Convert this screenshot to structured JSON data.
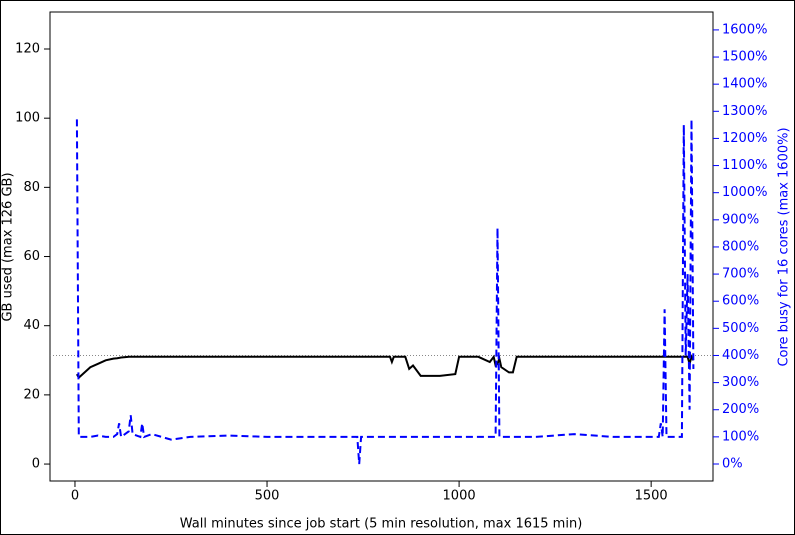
{
  "chart_data": {
    "type": "line",
    "xlabel": "Wall minutes since job start (5 min resolution, max 1615 min)",
    "ylabel": "GB used (max 126 GB)",
    "y2label": "Core busy for 16 cores (max 1600%)",
    "x": [
      5,
      10,
      20,
      40,
      60,
      80,
      100,
      110,
      115,
      120,
      140,
      145,
      150,
      170,
      175,
      180,
      200,
      250,
      300,
      400,
      500,
      600,
      700,
      735,
      740,
      745,
      800,
      820,
      825,
      830,
      860,
      870,
      880,
      900,
      950,
      990,
      1000,
      1050,
      1080,
      1090,
      1095,
      1100,
      1105,
      1110,
      1130,
      1140,
      1150,
      1200,
      1300,
      1400,
      1500,
      1520,
      1525,
      1530,
      1535,
      1540,
      1560,
      1580,
      1585,
      1590,
      1595,
      1600,
      1605,
      1610
    ],
    "series": [
      {
        "name": "GB used",
        "color": "#000000",
        "dash": "solid",
        "values": [
          26,
          25,
          26,
          28,
          29,
          30,
          30.5,
          30.6,
          30.7,
          30.8,
          31,
          31,
          31,
          31,
          31,
          31,
          31,
          31,
          31,
          31,
          31,
          31,
          31,
          31,
          31,
          31,
          31,
          31,
          29.5,
          31,
          31,
          27.5,
          28.5,
          25.5,
          25.5,
          26,
          31,
          31,
          29.5,
          31,
          28.5,
          29,
          30.5,
          28,
          26.5,
          26.5,
          31,
          31,
          31,
          31,
          31,
          31,
          31,
          31,
          31,
          31,
          31,
          31,
          31,
          31,
          31,
          29,
          31,
          30
        ]
      },
      {
        "name": "Core busy",
        "color": "#0000ff",
        "dash": "dashed",
        "axis": "y2",
        "values": [
          1270,
          100,
          100,
          100,
          105,
          100,
          100,
          110,
          150,
          100,
          120,
          180,
          110,
          100,
          150,
          100,
          110,
          90,
          100,
          105,
          100,
          100,
          100,
          100,
          0,
          100,
          100,
          100,
          100,
          100,
          100,
          100,
          100,
          100,
          100,
          100,
          100,
          100,
          100,
          100,
          100,
          870,
          100,
          100,
          100,
          100,
          100,
          100,
          110,
          100,
          100,
          100,
          150,
          100,
          570,
          100,
          100,
          100,
          1250,
          400,
          700,
          200,
          1270,
          350
        ]
      }
    ],
    "xlim": [
      -65,
      1661
    ],
    "xticks": [
      0,
      500,
      1000,
      1500
    ],
    "ylim": [
      -4.9,
      130.7
    ],
    "yticks": [
      0,
      20,
      40,
      60,
      80,
      100,
      120
    ],
    "y2lim": [
      -62.7,
      1666
    ],
    "y2_color": "#0000ff",
    "y2ticks": [
      {
        "value": 0,
        "label": "0%"
      },
      {
        "value": 100,
        "label": "100%"
      },
      {
        "value": 200,
        "label": "200%"
      },
      {
        "value": 300,
        "label": "300%"
      },
      {
        "value": 400,
        "label": "400%"
      },
      {
        "value": 500,
        "label": "500%"
      },
      {
        "value": 600,
        "label": "600%"
      },
      {
        "value": 700,
        "label": "700%"
      },
      {
        "value": 800,
        "label": "800%"
      },
      {
        "value": 900,
        "label": "900%"
      },
      {
        "value": 1000,
        "label": "1000%"
      },
      {
        "value": 1100,
        "label": "1100%"
      },
      {
        "value": 1200,
        "label": "1200%"
      },
      {
        "value": 1300,
        "label": "1300%"
      },
      {
        "value": 1400,
        "label": "1400%"
      },
      {
        "value": 1500,
        "label": "1500%"
      },
      {
        "value": 1600,
        "label": "1600%"
      }
    ],
    "reference_line": {
      "value": 400,
      "axis": "y2",
      "color": "#888888"
    }
  }
}
